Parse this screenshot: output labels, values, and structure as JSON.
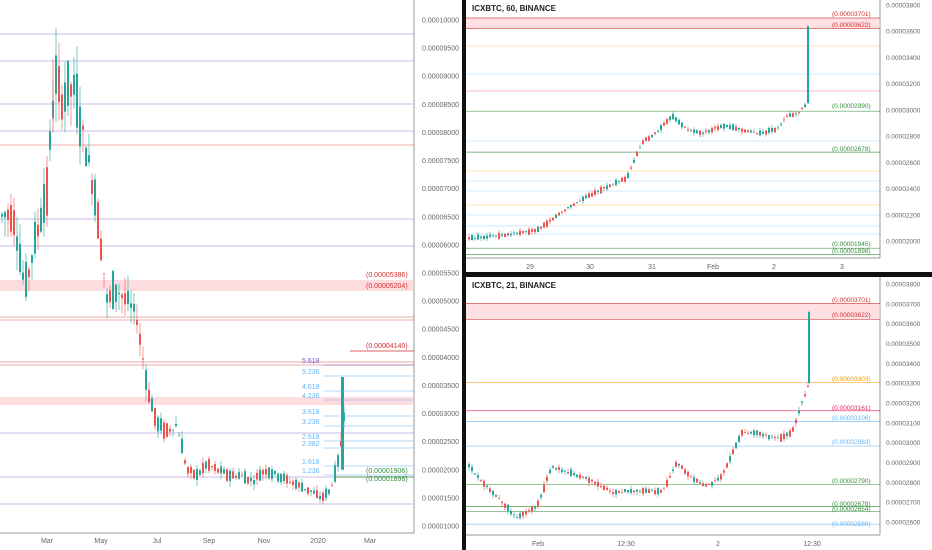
{
  "colors": {
    "up": "#26a69a",
    "down": "#ef5350",
    "axis": "#666666",
    "grid": "#eeeeee",
    "red": "#d32f2f",
    "green": "#388e3c",
    "blue": "#64b5f6",
    "orange": "#ff9800",
    "purple": "#7e57c2",
    "pink": "#e91e63"
  },
  "left": {
    "name": "left-chart",
    "price_labels": [
      "0.00010000",
      "0.00009500",
      "0.00009000",
      "0.00008500",
      "0.00008000",
      "0.00007500",
      "0.00007000",
      "0.00006500",
      "0.00006000",
      "0.00005500",
      "0.00005000",
      "0.00004500",
      "0.00004000",
      "0.00003500",
      "0.00003000",
      "0.00002500",
      "0.00002000",
      "0.00001500",
      "0.00001000"
    ],
    "time_labels": [
      "Mar",
      "May",
      "Jul",
      "Sep",
      "Nov",
      "2020",
      "Mar"
    ],
    "levels": [
      {
        "label": "(0.00005386)",
        "color": "#d32f2f",
        "value": 5.386e-05
      },
      {
        "label": "(0.00005204)",
        "color": "#d32f2f",
        "value": 5.204e-05
      },
      {
        "label": "(0.00004140)",
        "color": "#d32f2f",
        "value": 4.14e-05
      },
      {
        "label": "(0.00001906)",
        "color": "#388e3c",
        "value": 1.906e-05
      },
      {
        "label": "(0.00001898)",
        "color": "#388e3c",
        "value": 1.898e-05
      }
    ],
    "fib_labels": [
      "5.618",
      "5.236",
      "4.618",
      "4.236",
      "3.618",
      "3.236",
      "2.618",
      "2.382",
      "1.618",
      "1.236"
    ]
  },
  "top_right": {
    "title": "ICXBTC, 60, BINANCE",
    "price_labels": [
      "0.00003800",
      "0.00003600",
      "0.00003400",
      "0.00003200",
      "0.00003000",
      "0.00002800",
      "0.00002600",
      "0.00002400",
      "0.00002200",
      "0.00002000"
    ],
    "time_labels": [
      "29",
      "30",
      "31",
      "Feb",
      "2",
      "3"
    ],
    "levels": [
      {
        "label": "(0.00003701)",
        "color": "#d32f2f",
        "value": 3.701e-05
      },
      {
        "label": "(0.00003622)",
        "color": "#d32f2f",
        "value": 3.622e-05
      },
      {
        "label": "(0.00002990)",
        "color": "#388e3c",
        "value": 2.99e-05
      },
      {
        "label": "(0.00002678)",
        "color": "#388e3c",
        "value": 2.678e-05
      },
      {
        "label": "(0.00001945)",
        "color": "#388e3c",
        "value": 1.945e-05
      },
      {
        "label": "(0.00001898)",
        "color": "#388e3c",
        "value": 1.898e-05
      }
    ]
  },
  "bottom_right": {
    "title": "ICXBTC, 21, BINANCE",
    "price_labels": [
      "0.00003800",
      "0.00003700",
      "0.00003600",
      "0.00003500",
      "0.00003400",
      "0.00003300",
      "0.00003200",
      "0.00003100",
      "0.00003000",
      "0.00002900",
      "0.00002800",
      "0.00002700",
      "0.00002600"
    ],
    "time_labels": [
      "Feb",
      "12:30",
      "2",
      "12:30"
    ],
    "levels": [
      {
        "label": "(0.00003701)",
        "color": "#d32f2f",
        "value": 3.701e-05
      },
      {
        "label": "(0.00003622)",
        "color": "#d32f2f",
        "value": 3.622e-05
      },
      {
        "label": "(0.00003303)",
        "color": "#ff9800",
        "value": 3.303e-05
      },
      {
        "label": "(0.00003161)",
        "color": "#e91e63",
        "value": 3.161e-05
      },
      {
        "label": "(0.00003106)",
        "color": "#64b5f6",
        "value": 3.106e-05
      },
      {
        "label": "(0.00002983)",
        "color": "#64b5f6",
        "value": 2.983e-05
      },
      {
        "label": "(0.00002790)",
        "color": "#388e3c",
        "value": 2.79e-05
      },
      {
        "label": "(0.00002678)",
        "color": "#388e3c",
        "value": 2.678e-05
      },
      {
        "label": "(0.00002654)",
        "color": "#388e3c",
        "value": 2.654e-05
      },
      {
        "label": "(0.00002589)",
        "color": "#64b5f6",
        "value": 2.589e-05
      }
    ]
  }
}
